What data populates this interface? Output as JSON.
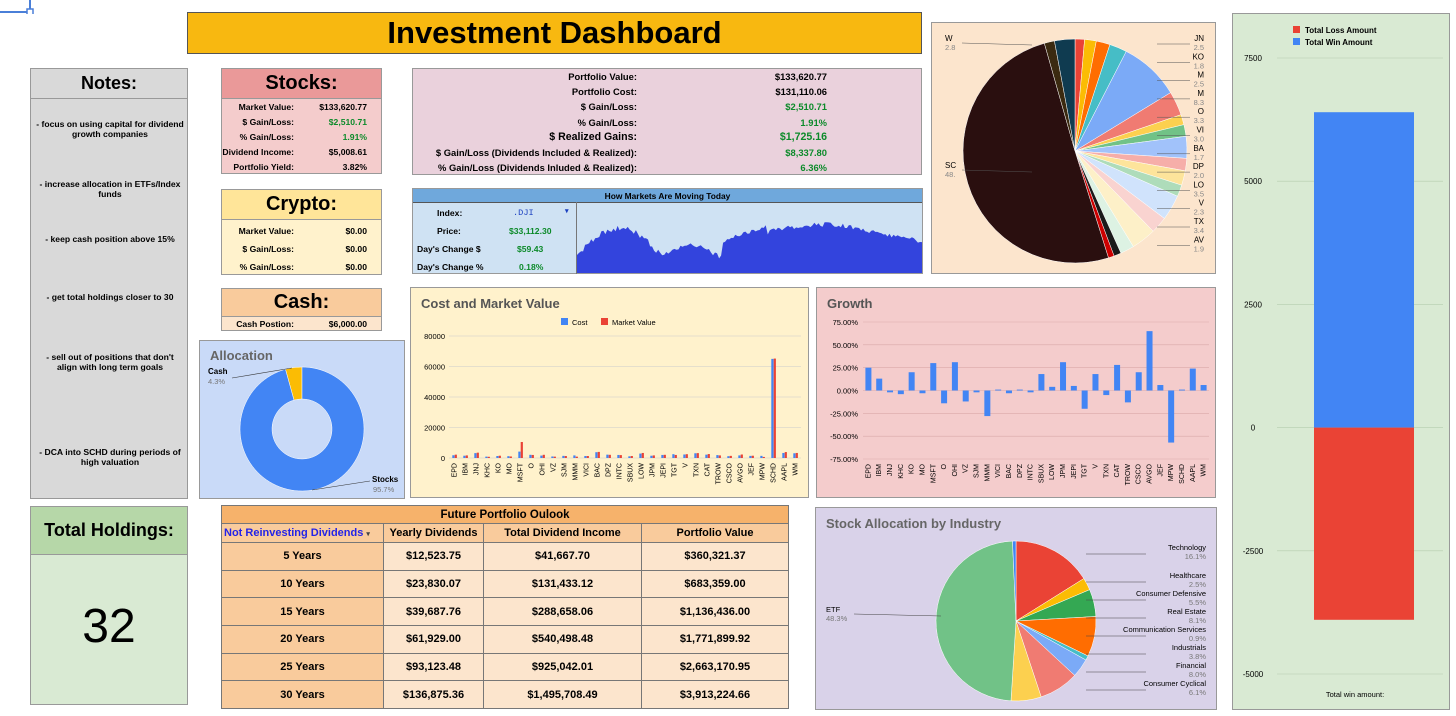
{
  "title": "Investment Dashboard",
  "notes": {
    "header": "Notes:",
    "items": [
      "- focus on using capital for dividend growth companies",
      "- increase allocation in ETFs/Index funds",
      "- keep cash position above 15%",
      "- get total holdings closer to 30",
      "- sell out of positions that don't align with long term goals",
      "- DCA into SCHD during periods of high valuation"
    ]
  },
  "holdings": {
    "header": "Total Holdings:",
    "value": "32"
  },
  "stocks": {
    "header": "Stocks:",
    "rows": [
      {
        "k": "Market Value:",
        "v": "$133,620.77"
      },
      {
        "k": "$ Gain/Loss:",
        "v": "$2,510.71"
      },
      {
        "k": "% Gain/Loss:",
        "v": "1.91%"
      },
      {
        "k": "Dividend Income:",
        "v": "$5,008.61"
      },
      {
        "k": "Portfolio Yield:",
        "v": "3.82%"
      }
    ]
  },
  "crypto": {
    "header": "Crypto:",
    "rows": [
      {
        "k": "Market Value:",
        "v": "$0.00"
      },
      {
        "k": "$ Gain/Loss:",
        "v": "$0.00"
      },
      {
        "k": "% Gain/Loss:",
        "v": "$0.00"
      }
    ]
  },
  "cash": {
    "header": "Cash:",
    "k": "Cash Postion:",
    "v": "$6,000.00"
  },
  "summary": [
    {
      "k": "Portfolio Value:",
      "v": "$133,620.77"
    },
    {
      "k": "Portfolio Cost:",
      "v": "$131,110.06"
    },
    {
      "k": "$ Gain/Loss:",
      "v": "$2,510.71"
    },
    {
      "k": "% Gain/Loss:",
      "v": "1.91%"
    },
    {
      "k": "$ Realized Gains:",
      "v": "$1,725.16"
    },
    {
      "k": "$ Gain/Loss (Dividends Included & Realized):",
      "v": "$8,337.80"
    },
    {
      "k": "% Gain/Loss (Dividends Inluded & Realized):",
      "v": "6.36%"
    }
  ],
  "markets": {
    "header": "How Markets Are Moving Today",
    "index_label": "Index:",
    "index_value": ".DJI",
    "price_label": "Price:",
    "price_value": "$33,112.30",
    "change_label": "Day's Change $",
    "change_value": "$59.43",
    "pct_label": "Day's Change %",
    "pct_value": "0.18%"
  },
  "future": {
    "header": "Future Portfolio Oulook",
    "columns": [
      "Not Reinvesting Dividends",
      "Yearly Dividends",
      "Total Dividend Income",
      "Portfolio Value"
    ],
    "rows": [
      [
        "5 Years",
        "$12,523.75",
        "$41,667.70",
        "$360,321.37"
      ],
      [
        "10 Years",
        "$23,830.07",
        "$131,433.12",
        "$683,359.00"
      ],
      [
        "15 Years",
        "$39,687.76",
        "$288,658.06",
        "$1,136,436.00"
      ],
      [
        "20 Years",
        "$61,929.00",
        "$540,498.48",
        "$1,771,899.92"
      ],
      [
        "25 Years",
        "$93,123.48",
        "$925,042.01",
        "$2,663,170.95"
      ],
      [
        "30 Years",
        "$136,875.36",
        "$1,495,708.49",
        "$3,913,224.66"
      ]
    ]
  },
  "colors": {
    "blue": "#4285f4",
    "red": "#ea4335",
    "gold": "#f8b810"
  },
  "chart_data": [
    {
      "type": "pie",
      "title": "Allocation",
      "donut": true,
      "slices": [
        {
          "name": "Cash",
          "pct": "4.3%",
          "value": 4.3,
          "color": "#fbbc04"
        },
        {
          "name": "Stocks",
          "pct": "95.7%",
          "value": 95.7,
          "color": "#4285f4"
        }
      ]
    },
    {
      "type": "bar",
      "title": "Cost and Market Value",
      "legend": [
        "Cost",
        "Market Value"
      ],
      "yticks": [
        "0",
        "20000",
        "40000",
        "60000",
        "80000"
      ],
      "ylim": [
        0,
        80000
      ],
      "categories": [
        "EPD",
        "IBM",
        "JNJ",
        "KHC",
        "KO",
        "MO",
        "MSFT",
        "O",
        "OHI",
        "VZ",
        "SJM",
        "MMM",
        "VICI",
        "BAC",
        "DPZ",
        "INTC",
        "SBUX",
        "LOW",
        "JPM",
        "JEPI",
        "TGT",
        "V",
        "TXN",
        "CAT",
        "TROW",
        "CSCO",
        "AVGO",
        "JEF",
        "MPW",
        "SCHD",
        "AAPL",
        "WM"
      ],
      "series": [
        {
          "name": "Cost",
          "color": "#4285f4",
          "values": [
            1800,
            1500,
            3200,
            900,
            1300,
            1200,
            4200,
            2100,
            1600,
            1000,
            1400,
            1700,
            1300,
            3800,
            2200,
            2000,
            1100,
            2900,
            1500,
            2000,
            2500,
            2300,
            3100,
            2200,
            1900,
            1200,
            1700,
            1400,
            1400,
            65000,
            3300,
            3100
          ]
        },
        {
          "name": "Market Value",
          "color": "#ea4335",
          "values": [
            2200,
            1700,
            3500,
            800,
            1500,
            1000,
            10500,
            2000,
            2100,
            900,
            1300,
            900,
            1300,
            4000,
            2100,
            1900,
            1300,
            3300,
            1700,
            2100,
            2000,
            2500,
            3200,
            2600,
            1700,
            1400,
            2300,
            1500,
            700,
            65200,
            3900,
            3300
          ]
        }
      ]
    },
    {
      "type": "bar",
      "title": "Growth",
      "yticks": [
        "75.00%",
        "50.00%",
        "25.00%",
        "0.00%",
        "-25.00%",
        "-50.00%",
        "-75.00%"
      ],
      "ylim": [
        -75,
        75
      ],
      "categories": [
        "EPD",
        "IBM",
        "JNJ",
        "KHC",
        "KO",
        "MO",
        "MSFT",
        "O",
        "OHI",
        "VZ",
        "SJM",
        "MMM",
        "VICI",
        "BAC",
        "DPZ",
        "INTC",
        "SBUX",
        "LOW",
        "JPM",
        "JEPI",
        "TGT",
        "V",
        "TXN",
        "CAT",
        "TROW",
        "CSCO",
        "AVGO",
        "JEF",
        "MPW",
        "SCHD",
        "AAPL",
        "WM"
      ],
      "series": [
        {
          "name": "",
          "color": "#4285f4",
          "values": [
            25,
            13,
            -2,
            -4,
            20,
            -3,
            30,
            -14,
            31,
            -12,
            -2,
            -28,
            1,
            -3,
            1,
            -2,
            18,
            4,
            31,
            5,
            -20,
            18,
            -5,
            28,
            -13,
            20,
            65,
            6,
            -57,
            1,
            24,
            6
          ]
        }
      ]
    },
    {
      "type": "pie",
      "title": "Stock Allocation by Industry",
      "slices": [
        {
          "name": "Technology",
          "pct": "16.1%",
          "value": 16.1,
          "color": "#ea4335"
        },
        {
          "name": "Healthcare",
          "pct": "2.5%",
          "value": 2.5,
          "color": "#fbbc04"
        },
        {
          "name": "Consumer Defensive",
          "pct": "5.5%",
          "value": 5.5,
          "color": "#34a853"
        },
        {
          "name": "Real Estate",
          "pct": "8.1%",
          "value": 8.1,
          "color": "#ff6d01"
        },
        {
          "name": "Communication Services",
          "pct": "0.9%",
          "value": 0.9,
          "color": "#46bdc6"
        },
        {
          "name": "Industrials",
          "pct": "3.8%",
          "value": 3.8,
          "color": "#7baaf7"
        },
        {
          "name": "Financial",
          "pct": "8.0%",
          "value": 8.0,
          "color": "#f07b72"
        },
        {
          "name": "Consumer Cyclical",
          "pct": "6.1%",
          "value": 6.1,
          "color": "#fcd04f"
        },
        {
          "name": "ETF",
          "pct": "48.3%",
          "value": 48.3,
          "color": "#71c287"
        },
        {
          "name": "",
          "pct": "",
          "value": 0.7,
          "color": "#4285f4"
        }
      ]
    },
    {
      "type": "pie",
      "title": "",
      "labels_left": [
        {
          "name": "W",
          "pct": "2.8"
        },
        {
          "name": "SC",
          "pct": "48."
        }
      ],
      "labels_right": [
        {
          "name": "JN",
          "pct": "2.5"
        },
        {
          "name": "KO",
          "pct": "1.8"
        },
        {
          "name": "M",
          "pct": "2.5"
        },
        {
          "name": "M",
          "pct": "8.3"
        },
        {
          "name": "O",
          "pct": "3.3"
        },
        {
          "name": "VI",
          "pct": "3.0"
        },
        {
          "name": "BA",
          "pct": "1.7"
        },
        {
          "name": "DP",
          "pct": "2.0"
        },
        {
          "name": "LO",
          "pct": "3.5"
        },
        {
          "name": "V",
          "pct": "2.3"
        },
        {
          "name": "TX",
          "pct": "3.4"
        },
        {
          "name": "AV",
          "pct": "1.9"
        }
      ],
      "slices": [
        {
          "value": 1.3,
          "color": "#ea4335"
        },
        {
          "value": 1.6,
          "color": "#fbbc04"
        },
        {
          "value": 1.9,
          "color": "#ff6d01"
        },
        {
          "value": 2.4,
          "color": "#46bdc6"
        },
        {
          "value": 8.3,
          "color": "#7baaf7"
        },
        {
          "value": 3.3,
          "color": "#f07b72"
        },
        {
          "value": 1.4,
          "color": "#fcd04f"
        },
        {
          "value": 1.6,
          "color": "#71c287"
        },
        {
          "value": 3.0,
          "color": "#a1c2fa"
        },
        {
          "value": 1.7,
          "color": "#f6aea9"
        },
        {
          "value": 2.0,
          "color": "#fde49b"
        },
        {
          "value": 1.6,
          "color": "#aedcba"
        },
        {
          "value": 3.5,
          "color": "#d0e3fc"
        },
        {
          "value": 2.3,
          "color": "#f9d3d0"
        },
        {
          "value": 3.4,
          "color": "#fdf0c8"
        },
        {
          "value": 1.9,
          "color": "#ddf2e3"
        },
        {
          "value": 1.0,
          "color": "#1a1a1a"
        },
        {
          "value": 0.8,
          "color": "#cc0000"
        },
        {
          "value": 48.0,
          "color": "#2a0f0f"
        },
        {
          "value": 1.4,
          "color": "#3b2a10"
        },
        {
          "value": 2.8,
          "color": "#0f3b50"
        }
      ]
    },
    {
      "type": "bar",
      "title": "",
      "legend": [
        "Total Loss Amount",
        "Total Win Amount"
      ],
      "yticks": [
        "7500",
        "5000",
        "2500",
        "0",
        "-2500",
        "-5000"
      ],
      "ylim": [
        -5000,
        7500
      ],
      "series": [
        {
          "name": "Total Loss Amount",
          "color": "#ea4335",
          "values": [
            -3900
          ]
        },
        {
          "name": "Total Win Amount",
          "color": "#4285f4",
          "values": [
            6400
          ]
        }
      ],
      "caption": "Total win amount:"
    }
  ]
}
